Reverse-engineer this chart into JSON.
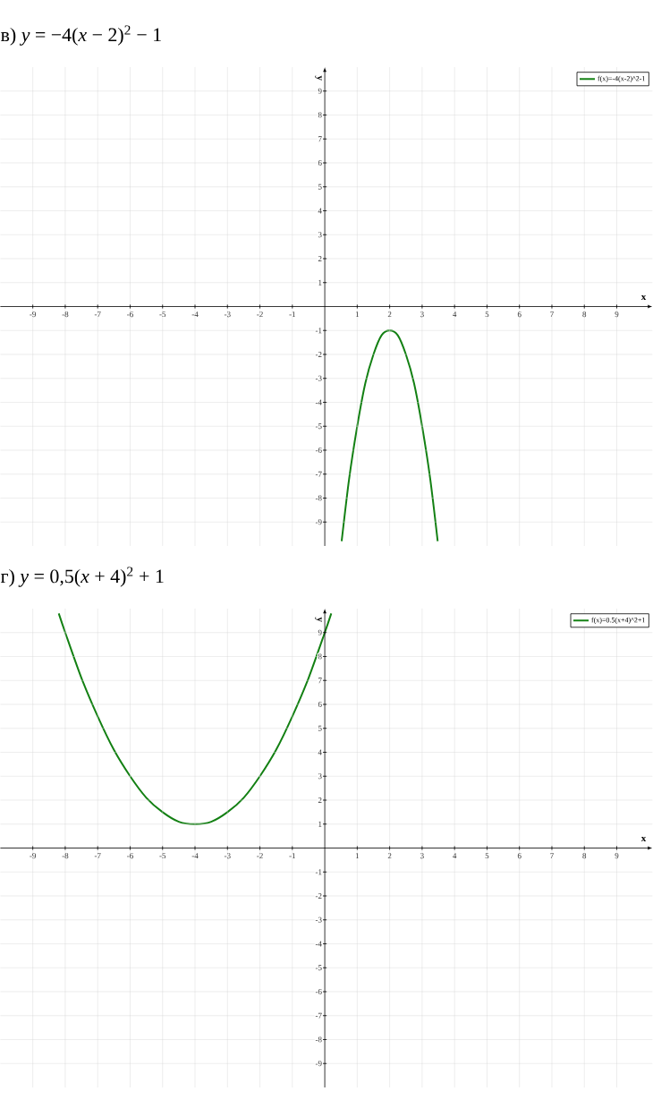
{
  "chart_data": [
    {
      "type": "line",
      "title": "в) *y* = −4(*x* − 2)$^{2}$ − 1",
      "xlabel": "x",
      "ylabel": "y",
      "x": [
        0.52,
        0.75,
        1,
        1.25,
        1.5,
        1.75,
        2,
        2.25,
        2.5,
        2.75,
        3,
        3.25,
        3.48
      ],
      "series": [
        {
          "name": "f(x)=-4(x-2)^2-1",
          "color": "#138013",
          "values": [
            -9.8,
            -7.2,
            -5,
            -3.2,
            -2,
            -1.2,
            -1,
            -1.2,
            -2,
            -3.2,
            -5,
            -7.2,
            -9.8
          ]
        }
      ],
      "xlim": [
        -10,
        10.1
      ],
      "ylim": [
        -10,
        10
      ],
      "xticks": [
        -9,
        -8,
        -7,
        -6,
        -5,
        -4,
        -3,
        -2,
        -1,
        1,
        2,
        3,
        4,
        5,
        6,
        7,
        8,
        9
      ],
      "yticks": [
        -9,
        -8,
        -7,
        -6,
        -5,
        -4,
        -3,
        -2,
        -1,
        1,
        2,
        3,
        4,
        5,
        6,
        7,
        8,
        9
      ],
      "grid": true,
      "legend": "top right"
    },
    {
      "type": "line",
      "title": "г) *y* = 0,5(*x* + 4)$^{2}$ + 1",
      "xlabel": "x",
      "ylabel": "y",
      "x": [
        -8.2,
        -8,
        -7.5,
        -7,
        -6.5,
        -6,
        -5.5,
        -5,
        -4.5,
        -4,
        -3.5,
        -3,
        -2.5,
        -2,
        -1.5,
        -1,
        -0.5,
        0,
        0.2
      ],
      "series": [
        {
          "name": "f(x)=0.5(x+4)^2+1",
          "color": "#138013",
          "values": [
            9.8,
            9,
            7.1,
            5.5,
            4.1,
            3,
            2.1,
            1.5,
            1.1,
            1,
            1.1,
            1.5,
            2.1,
            3,
            4.1,
            5.5,
            7.1,
            9,
            9.8
          ]
        }
      ],
      "xlim": [
        -10,
        10.1
      ],
      "ylim": [
        -10,
        10
      ],
      "xticks": [
        -9,
        -8,
        -7,
        -6,
        -5,
        -4,
        -3,
        -2,
        -1,
        1,
        2,
        3,
        4,
        5,
        6,
        7,
        8,
        9
      ],
      "yticks": [
        -9,
        -8,
        -7,
        -6,
        -5,
        -4,
        -3,
        -2,
        -1,
        1,
        2,
        3,
        4,
        5,
        6,
        7,
        8,
        9
      ],
      "grid": true,
      "legend": "top right"
    }
  ]
}
